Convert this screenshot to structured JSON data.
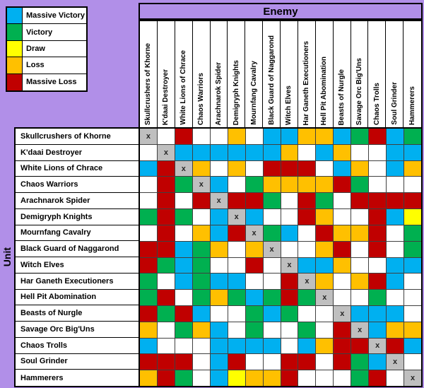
{
  "header": {
    "enemy_label": "Enemy",
    "unit_label": "Unit"
  },
  "legend": {
    "items": [
      {
        "label": "Massive Victory",
        "color": "#00B0F0"
      },
      {
        "label": "Victory",
        "color": "#00B050"
      },
      {
        "label": "Draw",
        "color": "#FFFF00"
      },
      {
        "label": "Loss",
        "color": "#FFC000"
      },
      {
        "label": "Massive Loss",
        "color": "#C00000"
      }
    ]
  },
  "chart_data": {
    "type": "heatmap",
    "x_axis_label": "Enemy",
    "y_axis_label": "Unit",
    "categories": [
      "Skullcrushers of Khorne",
      "K'daai Destroyer",
      "White Lions of Chrace",
      "Chaos Warriors",
      "Arachnarok Spider",
      "Demigryph Knights",
      "Mournfang Cavalry",
      "Black Guard of Naggarond",
      "Witch Elves",
      "Har Ganeth Executioners",
      "Hell Pit Abomination",
      "Beasts of Nurgle",
      "Savage Orc Big'Uns",
      "Chaos Trolls",
      "Soul Grinder",
      "Hammerers"
    ],
    "cell_color_key": {
      "B": "Massive Victory",
      "G": "Victory",
      "Y": "Draw",
      "O": "Loss",
      "R": "Massive Loss",
      "W": "blank",
      "X": "same-unit diagonal"
    },
    "palette": {
      "B": "#00B0F0",
      "G": "#00B050",
      "Y": "#FFFF00",
      "O": "#FFC000",
      "R": "#C00000",
      "W": "#FFFFFF",
      "X": "#BFBFBF"
    },
    "diagonal_marker": "x",
    "matrix": [
      "XWRWWOWBBOOBGRBG",
      "WXBBBBBBOWBOWWBB",
      "BRXOWOWRRRWBOWBO",
      "WRGXBWGOOOORGWWW",
      "WRWRXRRGWRGWRRRR",
      "GRGWBXBWWROWWRBY",
      "WRWOBRXGBWROORWG",
      "RRBGOWOXWWORWRWG",
      "RGBGWWRWXBBOWWBB",
      "GWBGBBWWRXOWORBW",
      "GRWGOGBGRGXWWGWW",
      "RGRBWWGBGWWXBBBW",
      "OWGOBWGWWGWRXBOO",
      "BWWWBBBBWBORRXRB",
      "RRRWBRWWRRWRGBXW",
      "ORGWBYOORWWWGRWX"
    ]
  },
  "colors": {
    "background": "#B18FE8",
    "grid_line": "#404040",
    "border": "#000000"
  }
}
